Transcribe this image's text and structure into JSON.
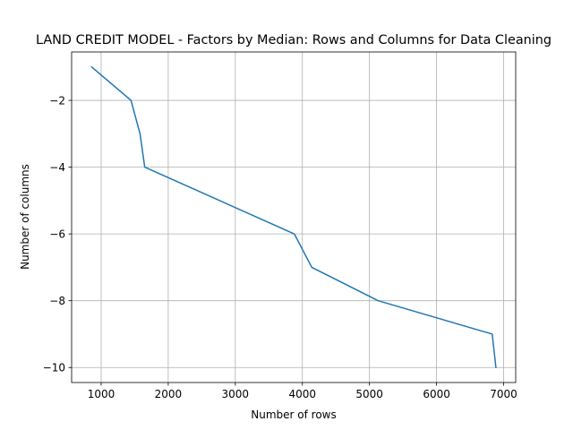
{
  "chart_data": {
    "type": "line",
    "title": "LAND CREDIT MODEL - Factors by Median: Rows and Columns for Data Cleaning",
    "xlabel": "Number of rows",
    "ylabel": "Number of columns",
    "xlim": [
      560,
      7180
    ],
    "ylim": [
      -10.45,
      -0.55
    ],
    "xticks": [
      1000,
      2000,
      3000,
      4000,
      5000,
      6000,
      7000
    ],
    "yticks": [
      -2,
      -4,
      -6,
      -8,
      -10
    ],
    "xtick_labels": [
      "1000",
      "2000",
      "3000",
      "4000",
      "5000",
      "6000",
      "7000"
    ],
    "ytick_labels": [
      "−2",
      "−4",
      "−6",
      "−8",
      "−10"
    ],
    "grid": true,
    "series": [
      {
        "color": "#1f77b4",
        "x": [
          860,
          1445,
          1580,
          1650,
          3880,
          4140,
          5130,
          6830,
          6885
        ],
        "y": [
          -1,
          -2,
          -3,
          -4,
          -6,
          -7,
          -8,
          -9,
          -10
        ]
      }
    ]
  }
}
